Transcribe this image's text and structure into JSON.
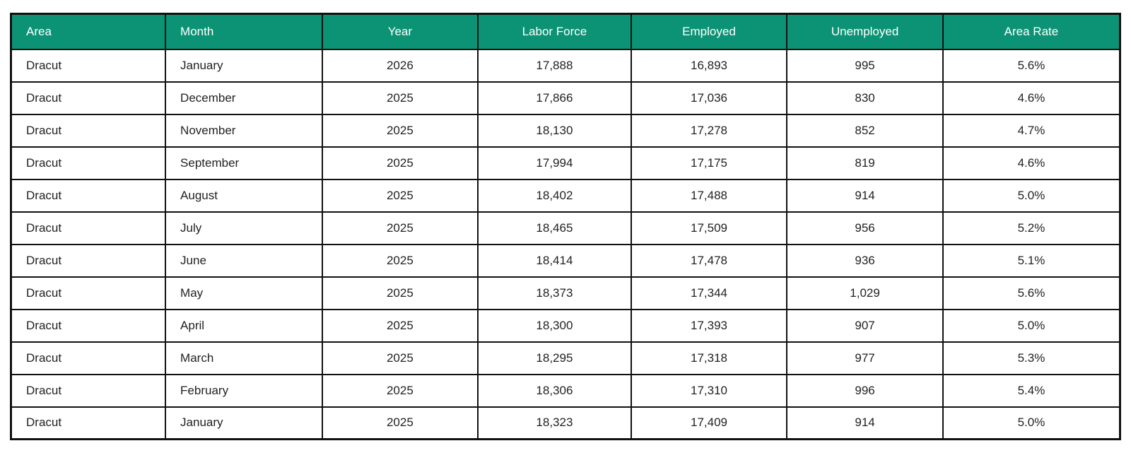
{
  "style": {
    "header_bg": "#0c9375",
    "header_text_color": "#ffffff",
    "border_color": "#111111",
    "body_text_color": "#1f2023",
    "page_bg": "#ffffff"
  },
  "chart_data": {
    "type": "table",
    "title": "",
    "columns": [
      "Area",
      "Month",
      "Year",
      "Labor Force",
      "Employed",
      "Unemployed",
      "Area Rate"
    ],
    "column_align": [
      "left",
      "left",
      "center",
      "center",
      "center",
      "center",
      "center"
    ],
    "rows": [
      [
        "Dracut",
        "January",
        "2026",
        "17,888",
        "16,893",
        "995",
        "5.6%"
      ],
      [
        "Dracut",
        "December",
        "2025",
        "17,866",
        "17,036",
        "830",
        "4.6%"
      ],
      [
        "Dracut",
        "November",
        "2025",
        "18,130",
        "17,278",
        "852",
        "4.7%"
      ],
      [
        "Dracut",
        "September",
        "2025",
        "17,994",
        "17,175",
        "819",
        "4.6%"
      ],
      [
        "Dracut",
        "August",
        "2025",
        "18,402",
        "17,488",
        "914",
        "5.0%"
      ],
      [
        "Dracut",
        "July",
        "2025",
        "18,465",
        "17,509",
        "956",
        "5.2%"
      ],
      [
        "Dracut",
        "June",
        "2025",
        "18,414",
        "17,478",
        "936",
        "5.1%"
      ],
      [
        "Dracut",
        "May",
        "2025",
        "18,373",
        "17,344",
        "1,029",
        "5.6%"
      ],
      [
        "Dracut",
        "April",
        "2025",
        "18,300",
        "17,393",
        "907",
        "5.0%"
      ],
      [
        "Dracut",
        "March",
        "2025",
        "18,295",
        "17,318",
        "977",
        "5.3%"
      ],
      [
        "Dracut",
        "February",
        "2025",
        "18,306",
        "17,310",
        "996",
        "5.4%"
      ],
      [
        "Dracut",
        "January",
        "2025",
        "18,323",
        "17,409",
        "914",
        "5.0%"
      ]
    ],
    "legend": "none",
    "grid": "full-borders"
  }
}
